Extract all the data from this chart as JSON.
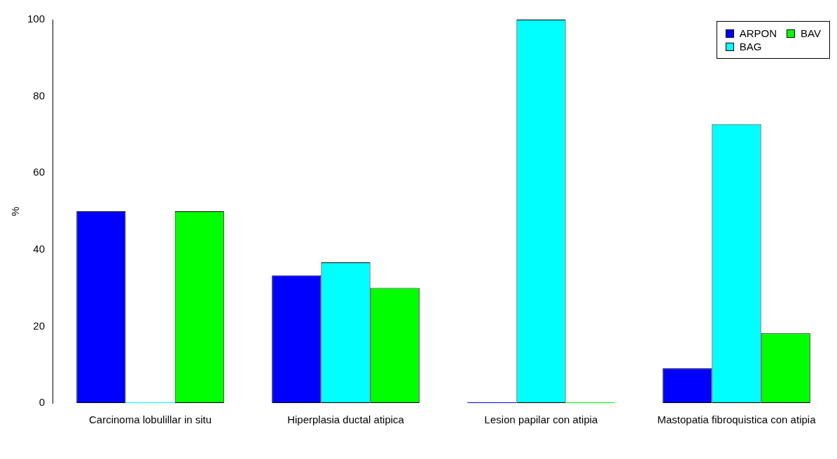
{
  "chart_data": {
    "type": "bar",
    "ylabel": "%",
    "categories": [
      "Carcinoma lobulillar in situ",
      "Hiperplasia ductal atipica",
      "Lesion papilar con atipia",
      "Mastopatia fibroquistica con atipia"
    ],
    "series": [
      {
        "name": "ARPON",
        "color": "#0000ff",
        "values": [
          50,
          33.3,
          0,
          9.1
        ]
      },
      {
        "name": "BAG",
        "color": "#00ffff",
        "values": [
          0,
          36.7,
          100,
          72.7
        ]
      },
      {
        "name": "BAV",
        "color": "#00ff00",
        "values": [
          50,
          30,
          0,
          18.2
        ]
      }
    ],
    "ylim": [
      0,
      100
    ],
    "yticks": [
      0,
      20,
      40,
      60,
      80,
      100
    ],
    "grid": false,
    "legend": "top right"
  }
}
